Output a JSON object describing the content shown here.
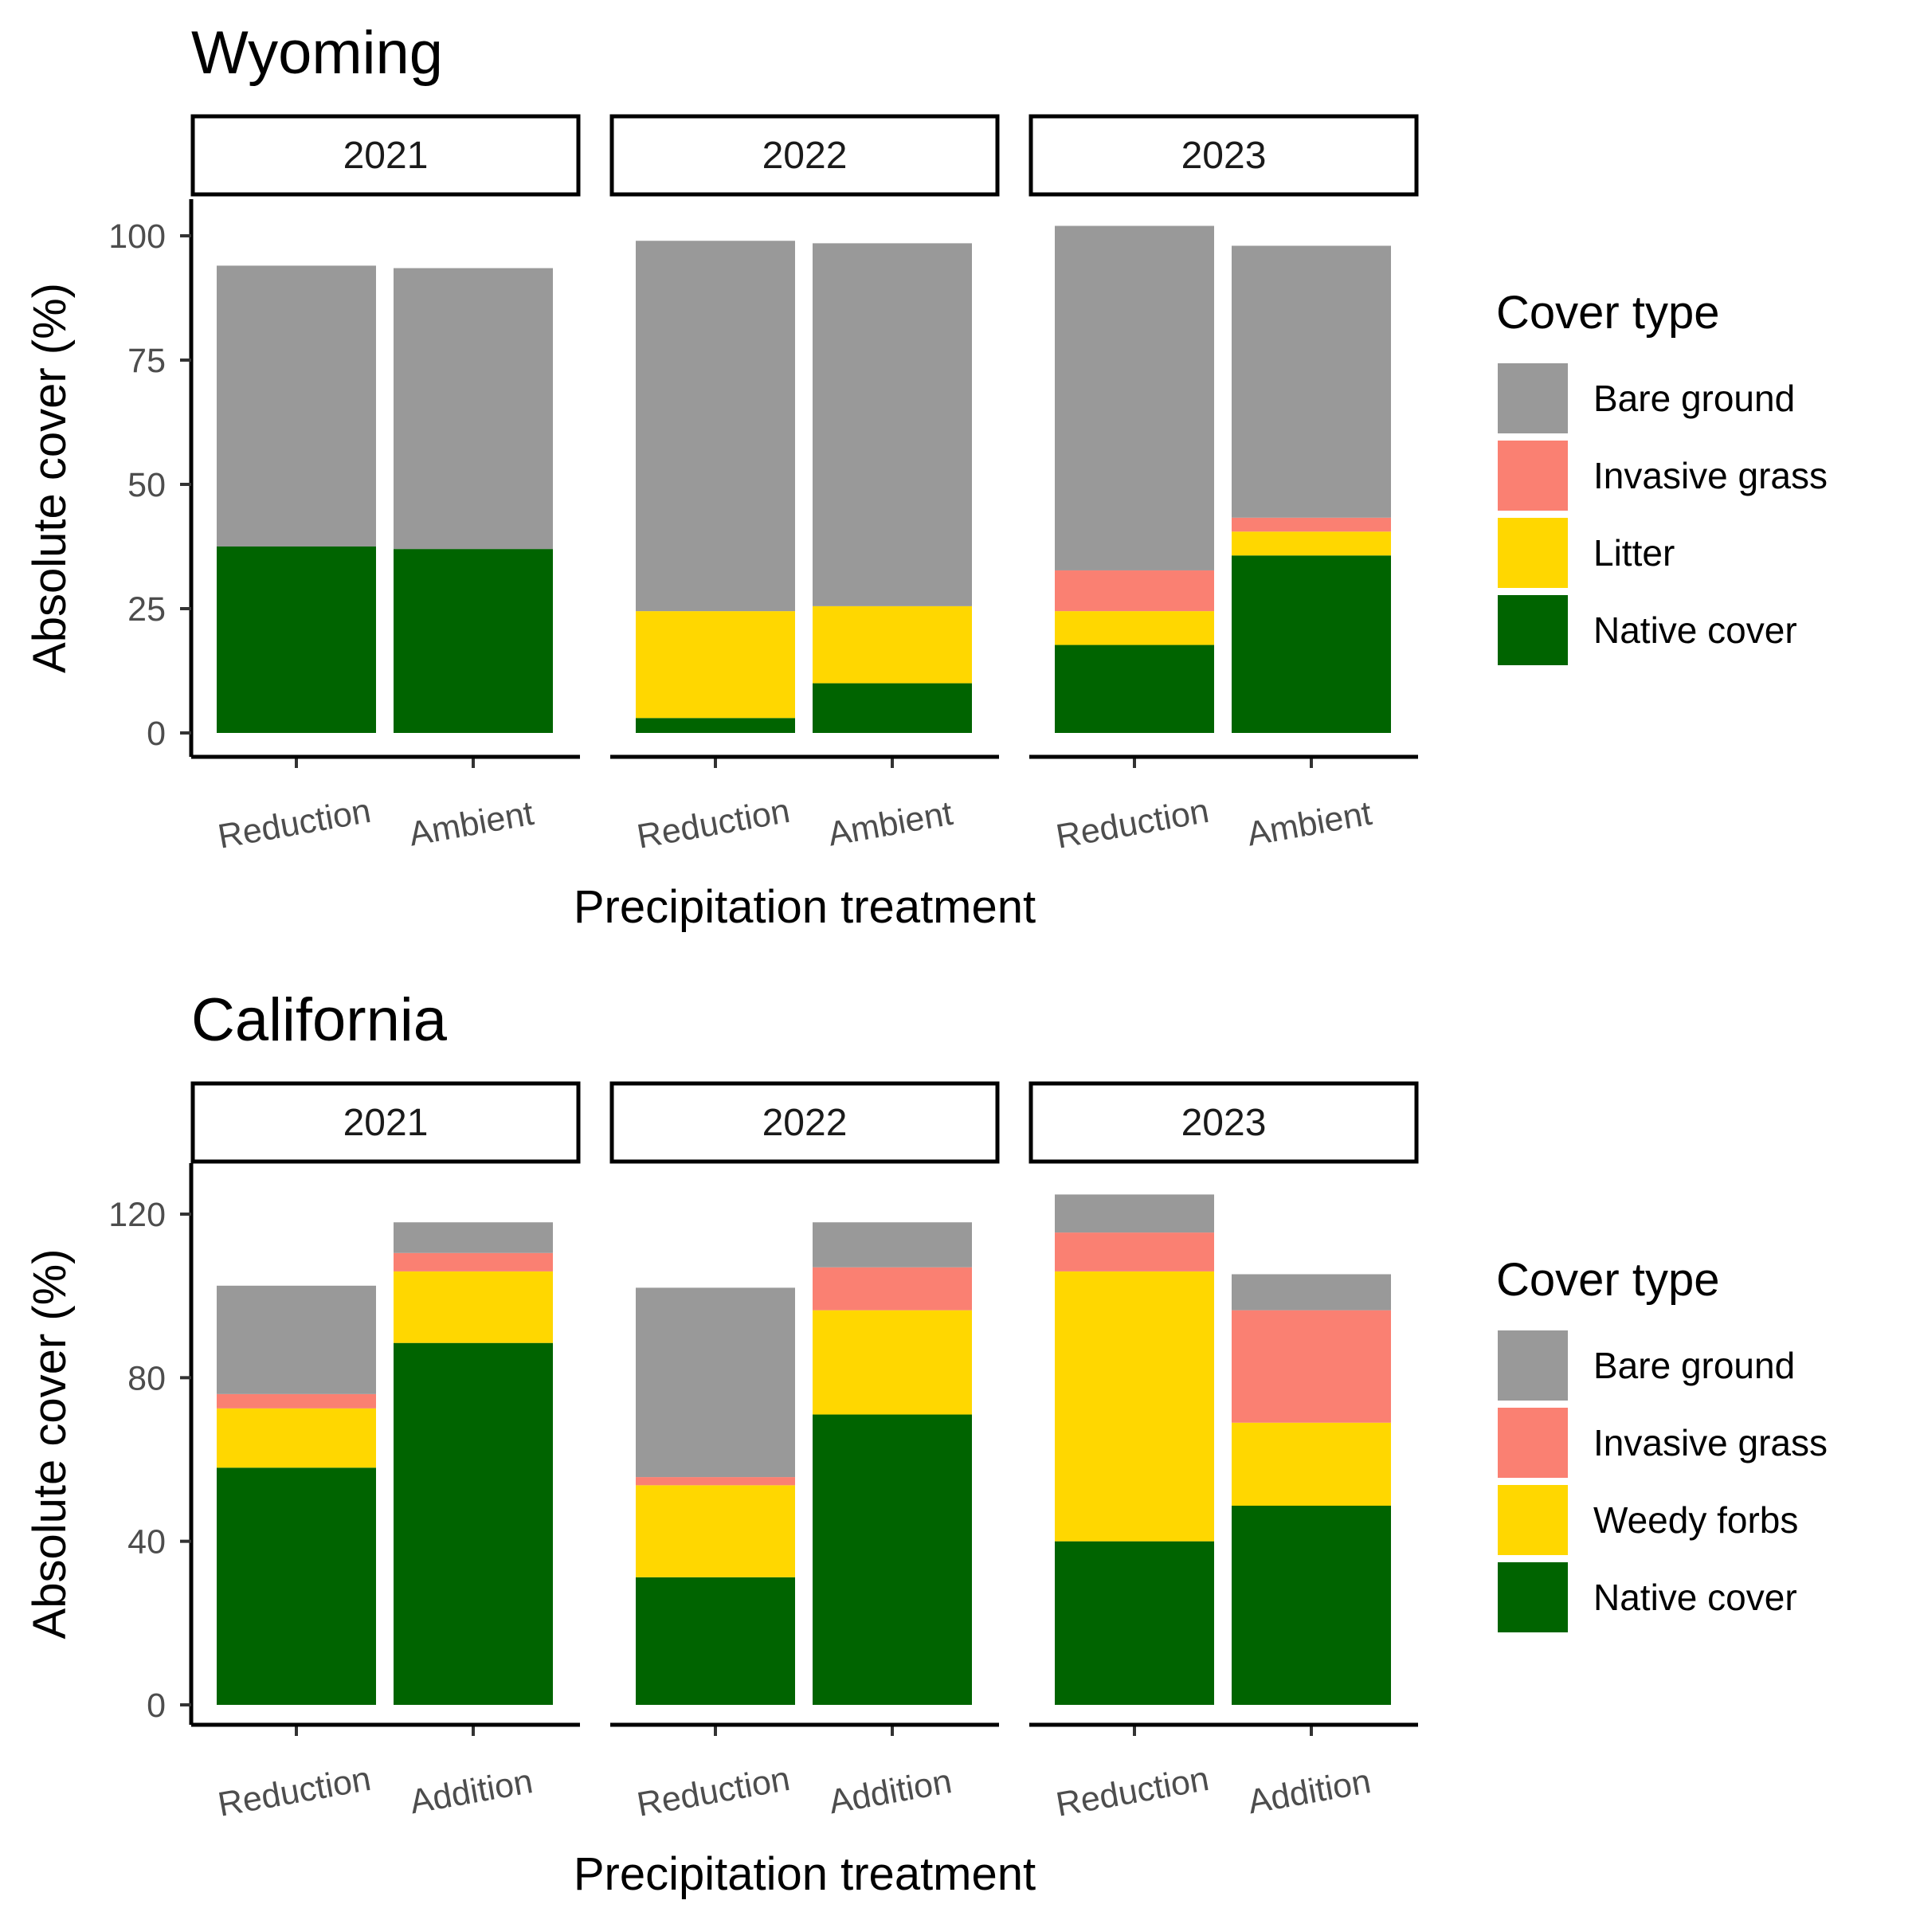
{
  "chart_data": [
    {
      "type": "bar",
      "stacked": true,
      "title": "Wyoming",
      "xlabel": "Precipitation treatment",
      "ylabel": "Absolute cover (%)",
      "ylim": [
        0,
        105
      ],
      "yticks": [
        0,
        25,
        50,
        75,
        100
      ],
      "legend_title": "Cover type",
      "legend_position": "right",
      "facets": [
        {
          "label": "2021",
          "categories": [
            "Reduction",
            "Ambient"
          ],
          "series": [
            {
              "name": "Native cover",
              "values": [
                37.5,
                37
              ]
            },
            {
              "name": "Litter",
              "values": [
                0,
                0
              ]
            },
            {
              "name": "Invasive grass",
              "values": [
                0,
                0
              ]
            },
            {
              "name": "Bare ground",
              "values": [
                56.5,
                56.5
              ]
            }
          ]
        },
        {
          "label": "2022",
          "categories": [
            "Reduction",
            "Ambient"
          ],
          "series": [
            {
              "name": "Native cover",
              "values": [
                3,
                10
              ]
            },
            {
              "name": "Litter",
              "values": [
                21.5,
                15.5
              ]
            },
            {
              "name": "Invasive grass",
              "values": [
                0,
                0
              ]
            },
            {
              "name": "Bare ground",
              "values": [
                74.5,
                73
              ]
            }
          ]
        },
        {
          "label": "2023",
          "categories": [
            "Reduction",
            "Ambient"
          ],
          "series": [
            {
              "name": "Native cover",
              "values": [
                17.7,
                35.7
              ]
            },
            {
              "name": "Litter",
              "values": [
                6.8,
                4.8
              ]
            },
            {
              "name": "Invasive grass",
              "values": [
                8.2,
                2.8
              ]
            },
            {
              "name": "Bare ground",
              "values": [
                69.3,
                54.7
              ]
            }
          ]
        }
      ],
      "legend": [
        {
          "name": "Bare ground",
          "color": "#999999"
        },
        {
          "name": "Invasive grass",
          "color": "#fa8072"
        },
        {
          "name": "Litter",
          "color": "#ffd700"
        },
        {
          "name": "Native cover",
          "color": "#006400"
        }
      ]
    },
    {
      "type": "bar",
      "stacked": true,
      "title": "California",
      "xlabel": "Precipitation treatment",
      "ylabel": "Absolute cover (%)",
      "ylim": [
        0,
        130
      ],
      "yticks": [
        0,
        40,
        80,
        120
      ],
      "legend_title": "Cover type",
      "legend_position": "right",
      "facets": [
        {
          "label": "2021",
          "categories": [
            "Reduction",
            "Addition"
          ],
          "series": [
            {
              "name": "Native cover",
              "values": [
                58,
                88.5
              ]
            },
            {
              "name": "Weedy forbs",
              "values": [
                14.5,
                17.5
              ]
            },
            {
              "name": "Invasive grass",
              "values": [
                3.5,
                4.5
              ]
            },
            {
              "name": "Bare ground",
              "values": [
                26.5,
                7.5
              ]
            }
          ]
        },
        {
          "label": "2022",
          "categories": [
            "Reduction",
            "Addition"
          ],
          "series": [
            {
              "name": "Native cover",
              "values": [
                31.2,
                71
              ]
            },
            {
              "name": "Weedy forbs",
              "values": [
                22.5,
                25.5
              ]
            },
            {
              "name": "Invasive grass",
              "values": [
                2,
                10.5
              ]
            },
            {
              "name": "Bare ground",
              "values": [
                46.3,
                11
              ]
            }
          ]
        },
        {
          "label": "2023",
          "categories": [
            "Reduction",
            "Addition"
          ],
          "series": [
            {
              "name": "Native cover",
              "values": [
                40,
                48.7
              ]
            },
            {
              "name": "Weedy forbs",
              "values": [
                66,
                20.3
              ]
            },
            {
              "name": "Invasive grass",
              "values": [
                9.5,
                27.5
              ]
            },
            {
              "name": "Bare ground",
              "values": [
                9.3,
                8.8
              ]
            }
          ]
        }
      ],
      "legend": [
        {
          "name": "Bare ground",
          "color": "#999999"
        },
        {
          "name": "Invasive grass",
          "color": "#fa8072"
        },
        {
          "name": "Weedy forbs",
          "color": "#ffd700"
        },
        {
          "name": "Native cover",
          "color": "#006400"
        }
      ]
    }
  ]
}
